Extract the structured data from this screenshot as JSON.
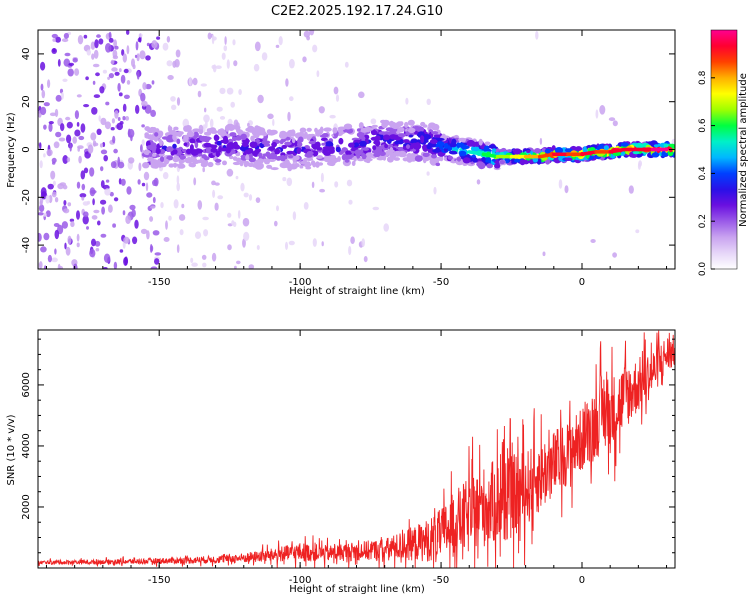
{
  "title": "C2E2.2025.192.17.24.G10",
  "chart_data": [
    {
      "type": "heatmap",
      "name": "spectrogram",
      "xlabel": "Height of straight line (km)",
      "ylabel": "Frequency (Hz)",
      "xlim": [
        -193,
        33
      ],
      "ylim": [
        -50,
        50
      ],
      "xticks": [
        -150,
        -100,
        -50,
        0
      ],
      "yticks": [
        -40,
        -20,
        0,
        20,
        40
      ],
      "colorbar": {
        "label": "Normalized spectral amplitude",
        "range": [
          0,
          1
        ],
        "ticks": [
          0.0,
          0.2,
          0.4,
          0.6,
          0.8
        ],
        "tick_labels": [
          "0.0",
          "0.2",
          "0.4",
          "0.6",
          "0.8"
        ],
        "colormap": [
          "#ffffff",
          "#e6d6f8",
          "#c9a3f0",
          "#9a5ae8",
          "#6a10e0",
          "#2a10e8",
          "#0040ff",
          "#00b8ff",
          "#00f0c8",
          "#00ff40",
          "#a0ff00",
          "#ffff00",
          "#ffb000",
          "#ff4000",
          "#ff0030",
          "#ff0090"
        ]
      },
      "ridge": {
        "x": [
          -155,
          -140,
          -125,
          -110,
          -100,
          -90,
          -80,
          -70,
          -65,
          -60,
          -55,
          -50,
          -45,
          -40,
          -35,
          -30,
          -25,
          -20,
          -15,
          -10,
          -5,
          0,
          5,
          10,
          15,
          20,
          25,
          30
        ],
        "y": [
          1,
          1,
          2,
          0,
          0,
          1,
          2,
          4,
          3,
          4,
          3,
          1,
          0,
          -1,
          -2,
          -3,
          -3,
          -3,
          -3,
          -2,
          -2,
          -2,
          -1,
          -1,
          0,
          0,
          0,
          0
        ],
        "amplitude": [
          0.25,
          0.28,
          0.3,
          0.28,
          0.27,
          0.28,
          0.3,
          0.32,
          0.3,
          0.35,
          0.35,
          0.4,
          0.5,
          0.55,
          0.6,
          0.65,
          0.7,
          0.8,
          0.85,
          0.9,
          0.85,
          0.9,
          0.85,
          0.95,
          0.95,
          0.95,
          1.0,
          1.0
        ]
      }
    },
    {
      "type": "line",
      "name": "snr",
      "xlabel": "Height of straight line (km)",
      "ylabel": "SNR (10 * v/v)",
      "xlim": [
        -193,
        33
      ],
      "ylim": [
        0,
        7800
      ],
      "xticks": [
        -150,
        -100,
        -50,
        0
      ],
      "yticks": [
        2000,
        4000,
        6000
      ],
      "color": "#ee2222",
      "envelope": {
        "x": [
          -193,
          -170,
          -150,
          -130,
          -120,
          -110,
          -100,
          -90,
          -80,
          -70,
          -60,
          -55,
          -50,
          -45,
          -40,
          -35,
          -30,
          -25,
          -20,
          -15,
          -10,
          -5,
          0,
          5,
          8,
          10,
          15,
          20,
          25,
          30,
          33
        ],
        "mean": [
          180,
          200,
          230,
          280,
          330,
          420,
          520,
          480,
          550,
          600,
          800,
          900,
          1100,
          1500,
          1700,
          2000,
          2200,
          2300,
          2600,
          3000,
          3400,
          3800,
          4200,
          4800,
          5200,
          5000,
          5600,
          6000,
          6400,
          7000,
          7100
        ],
        "spread": [
          90,
          110,
          140,
          180,
          230,
          320,
          450,
          380,
          450,
          520,
          800,
          1000,
          1200,
          1500,
          1800,
          1900,
          2000,
          2000,
          1800,
          1700,
          1600,
          1500,
          1500,
          1700,
          2000,
          1800,
          1600,
          1300,
          1100,
          900,
          800
        ]
      }
    }
  ]
}
